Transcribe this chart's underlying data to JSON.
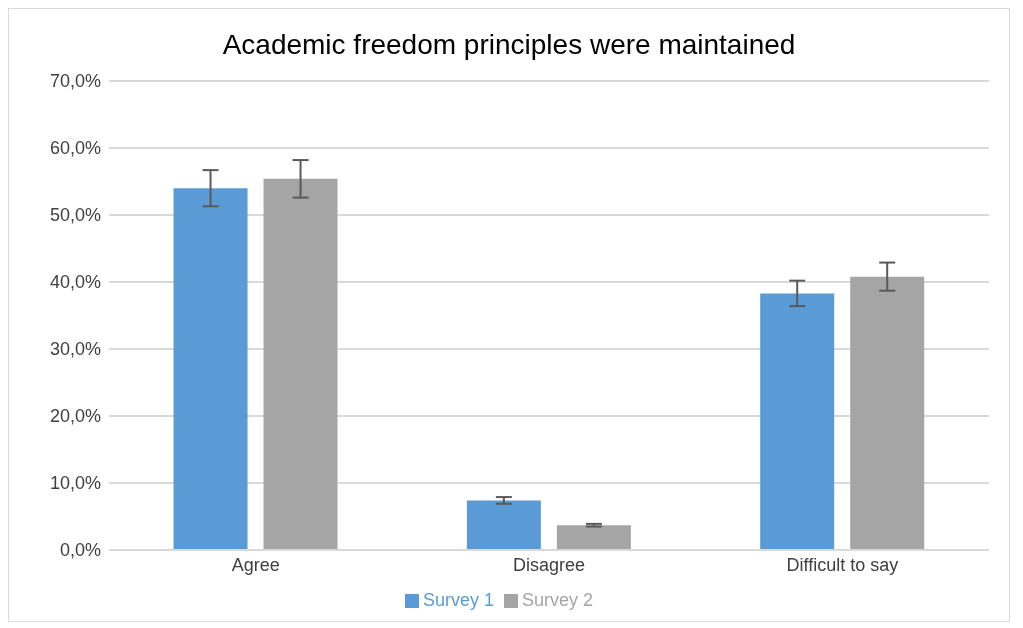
{
  "chart_data": {
    "type": "bar",
    "title": "Academic freedom principles were maintained",
    "categories": [
      "Agree",
      "Disagree",
      "Difficult to say"
    ],
    "series": [
      {
        "name": "Survey 1",
        "color": "#5b9bd5",
        "values": [
          54.0,
          7.4,
          38.3
        ],
        "errors": [
          2.7,
          0.5,
          1.9
        ]
      },
      {
        "name": "Survey 2",
        "color": "#a5a5a5",
        "values": [
          55.4,
          3.7,
          40.8
        ],
        "errors": [
          2.8,
          0.2,
          2.1
        ]
      }
    ],
    "ylim": [
      0,
      70
    ],
    "yticks": [
      {
        "value": 0,
        "label": "0,0%"
      },
      {
        "value": 10,
        "label": "10,0%"
      },
      {
        "value": 20,
        "label": "20,0%"
      },
      {
        "value": 30,
        "label": "30,0%"
      },
      {
        "value": 40,
        "label": "40,0%"
      },
      {
        "value": 50,
        "label": "50,0%"
      },
      {
        "value": 60,
        "label": "60,0%"
      },
      {
        "value": 70,
        "label": "70,0%"
      }
    ],
    "grid": "y",
    "legend": "bottom"
  }
}
